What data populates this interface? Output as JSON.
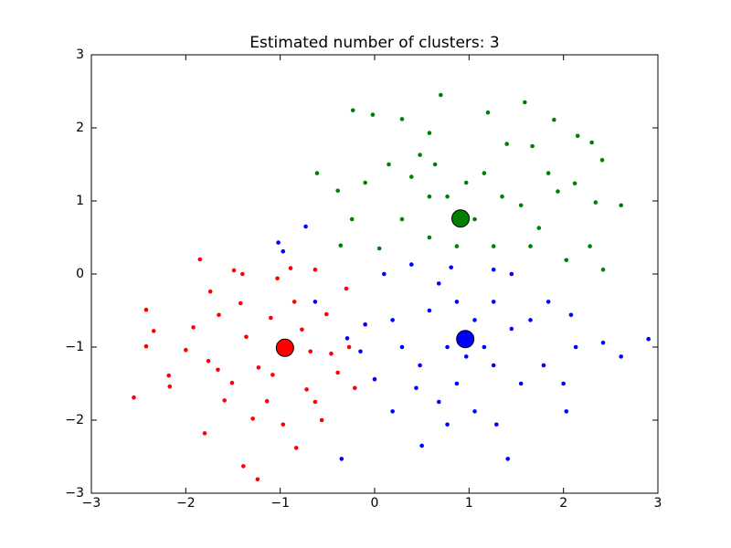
{
  "chart_data": {
    "type": "scatter",
    "title": "Estimated number of clusters: 3",
    "xlim": [
      -3,
      3
    ],
    "ylim": [
      -3,
      3
    ],
    "xticks": [
      {
        "value": -3,
        "label": "−3"
      },
      {
        "value": -2,
        "label": "−2"
      },
      {
        "value": -1,
        "label": "−1"
      },
      0,
      1,
      2,
      3
    ],
    "yticks": [
      {
        "value": -3,
        "label": "−3"
      },
      {
        "value": -2,
        "label": "−2"
      },
      {
        "value": -1,
        "label": "−1"
      },
      0,
      1,
      2,
      3
    ],
    "series": [
      {
        "color": "#ff0000",
        "center": [
          -0.95,
          -1.01
        ],
        "x": [
          -2.55,
          -2.42,
          -2.42,
          -2.34,
          -2.18,
          -2.17,
          -2.0,
          -1.92,
          -1.85,
          -1.8,
          -1.74,
          -1.66,
          -1.59,
          -1.49,
          -1.39,
          -1.42,
          -1.36,
          -1.23,
          -1.24,
          -1.14,
          -1.1,
          -1.03,
          -0.89,
          -0.83,
          -0.77,
          -0.72,
          -0.63,
          -0.56,
          -0.51,
          -0.39,
          -0.3,
          -0.21,
          -1.51,
          -1.29,
          -0.97,
          -0.68,
          -0.46,
          -1.76,
          -1.08,
          -0.85,
          -0.63,
          -1.4,
          -0.27,
          -1.65
        ],
        "y": [
          -1.69,
          -0.49,
          -0.99,
          -0.78,
          -1.39,
          -1.54,
          -1.04,
          -0.73,
          0.2,
          -2.18,
          -0.24,
          -1.31,
          -1.73,
          0.05,
          -2.63,
          -0.4,
          -0.86,
          -1.28,
          -2.81,
          -1.74,
          -0.6,
          -0.06,
          0.08,
          -2.38,
          -0.76,
          -1.58,
          0.06,
          -2.0,
          -0.55,
          -1.35,
          -0.2,
          -1.56,
          -1.49,
          -1.98,
          -2.06,
          -1.06,
          -1.09,
          -1.19,
          -1.38,
          -0.38,
          -1.75,
          0.0,
          -1.0,
          -0.56
        ]
      },
      {
        "color": "#008000",
        "center": [
          0.91,
          0.76
        ],
        "x": [
          -0.23,
          -0.02,
          0.29,
          0.58,
          0.7,
          1.2,
          1.59,
          1.9,
          2.15,
          2.3,
          2.41,
          2.61,
          2.34,
          2.12,
          -0.61,
          -0.39,
          -0.24,
          -0.36,
          0.05,
          0.15,
          0.39,
          0.58,
          0.77,
          0.97,
          1.16,
          1.35,
          1.55,
          1.74,
          1.94,
          1.26,
          0.87,
          0.58,
          0.29,
          0.48,
          1.4,
          1.67,
          2.28,
          2.42,
          2.03,
          -0.1,
          1.06,
          1.65,
          0.64,
          1.84
        ],
        "y": [
          2.24,
          2.18,
          2.12,
          1.93,
          2.45,
          2.21,
          2.35,
          2.11,
          1.89,
          1.8,
          1.56,
          0.94,
          0.98,
          1.24,
          1.38,
          1.14,
          0.75,
          0.39,
          0.35,
          1.5,
          1.33,
          1.06,
          1.06,
          1.25,
          1.38,
          1.06,
          0.94,
          0.63,
          1.13,
          0.38,
          0.38,
          0.5,
          0.75,
          1.63,
          1.78,
          1.75,
          0.38,
          0.06,
          0.19,
          1.25,
          0.75,
          0.38,
          1.5,
          1.38
        ]
      },
      {
        "color": "#0000ff",
        "center": [
          0.96,
          -0.89
        ],
        "x": [
          -1.02,
          -0.73,
          -0.97,
          -0.63,
          -0.35,
          2.9,
          2.61,
          2.42,
          2.03,
          1.41,
          0.5,
          0.77,
          1.06,
          1.29,
          0.19,
          0.0,
          -0.15,
          -0.1,
          0.19,
          0.29,
          0.48,
          0.58,
          0.68,
          0.87,
          1.06,
          1.26,
          1.45,
          1.65,
          1.84,
          2.08,
          2.13,
          1.79,
          1.55,
          1.26,
          0.87,
          0.68,
          0.44,
          0.1,
          0.39,
          0.81,
          1.26,
          1.45,
          0.97,
          1.16,
          0.77,
          2.0,
          -0.29
        ],
        "y": [
          0.43,
          0.65,
          0.31,
          -0.38,
          -2.53,
          -0.89,
          -1.13,
          -0.94,
          -1.88,
          -2.53,
          -2.35,
          -2.06,
          -1.88,
          -2.06,
          -1.88,
          -1.44,
          -1.06,
          -0.69,
          -0.63,
          -1.0,
          -1.25,
          -0.5,
          -0.13,
          -0.38,
          -0.63,
          -0.38,
          -0.75,
          -0.63,
          -0.38,
          -0.56,
          -1.0,
          -1.25,
          -1.5,
          -1.25,
          -1.5,
          -1.75,
          -1.56,
          0.0,
          0.13,
          0.09,
          0.06,
          0.0,
          -1.13,
          -1.0,
          -1.0,
          -1.5,
          -0.88
        ]
      }
    ]
  }
}
